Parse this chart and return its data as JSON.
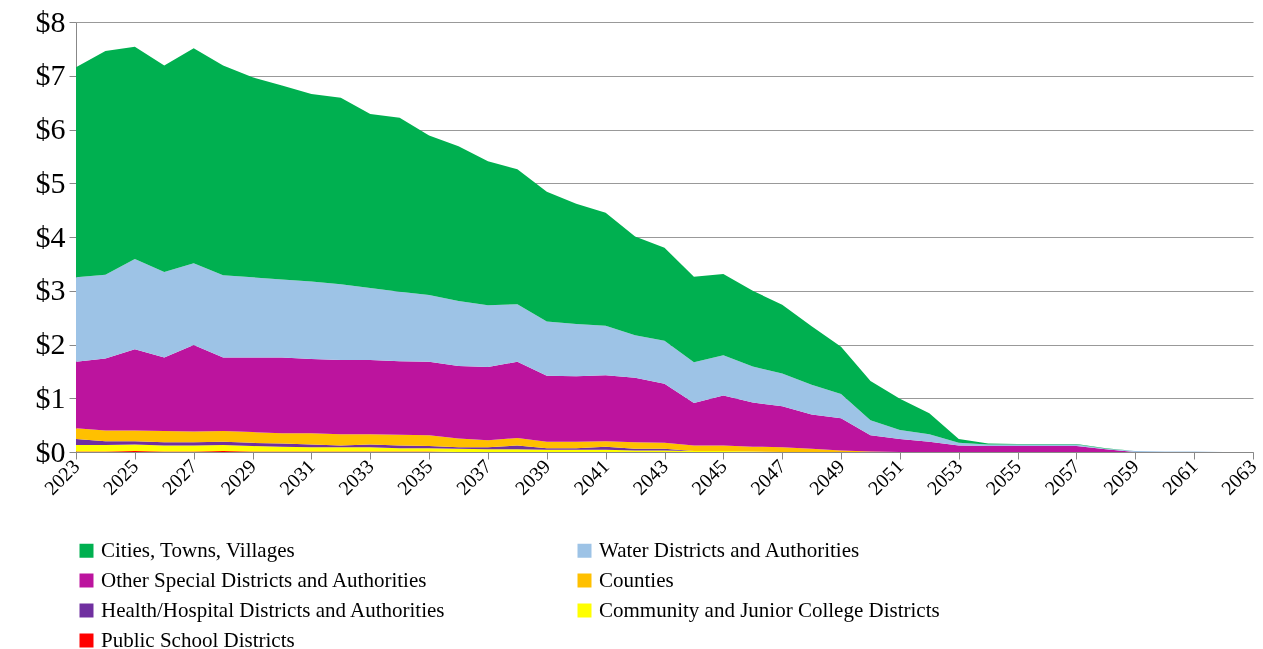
{
  "chart_data": {
    "type": "area",
    "stacked": true,
    "x": [
      2023,
      2024,
      2025,
      2026,
      2027,
      2028,
      2029,
      2030,
      2031,
      2032,
      2033,
      2034,
      2035,
      2036,
      2037,
      2038,
      2039,
      2040,
      2041,
      2042,
      2043,
      2044,
      2045,
      2046,
      2047,
      2048,
      2049,
      2050,
      2051,
      2052,
      2053,
      2054,
      2055,
      2056,
      2057,
      2058,
      2059,
      2060,
      2061,
      2062
    ],
    "series": [
      {
        "name": "Public School Districts",
        "color": "#ff0000",
        "values": [
          0.01,
          0.01,
          0.02,
          0.01,
          0.01,
          0.02,
          0.01,
          0.01,
          0.01,
          0.01,
          0.01,
          0.01,
          0.01,
          0,
          0,
          0,
          0,
          0,
          0,
          0,
          0,
          0,
          0,
          0,
          0,
          0,
          0,
          0,
          0,
          0,
          0,
          0,
          0,
          0,
          0,
          0,
          0,
          0,
          0,
          0
        ]
      },
      {
        "name": "Community and Junior College Districts",
        "color": "#ffff00",
        "values": [
          0.12,
          0.12,
          0.12,
          0.11,
          0.11,
          0.11,
          0.1,
          0.09,
          0.08,
          0.08,
          0.08,
          0.06,
          0.06,
          0.06,
          0.05,
          0.05,
          0.04,
          0.04,
          0.04,
          0.03,
          0.03,
          0.02,
          0.02,
          0.01,
          0,
          0,
          0,
          0,
          0,
          0,
          0,
          0,
          0,
          0,
          0,
          0,
          0,
          0,
          0,
          0
        ]
      },
      {
        "name": "Health/Hospital Districts and Authorities",
        "color": "#7030a0",
        "values": [
          0.11,
          0.07,
          0.06,
          0.06,
          0.06,
          0.06,
          0.06,
          0.06,
          0.05,
          0.03,
          0.05,
          0.05,
          0.04,
          0.03,
          0.04,
          0.07,
          0.03,
          0.03,
          0.06,
          0.03,
          0.03,
          0,
          0,
          0,
          0,
          0,
          0,
          0,
          0,
          0,
          0,
          0,
          0,
          0,
          0,
          0,
          0,
          0,
          0,
          0
        ]
      },
      {
        "name": "Counties",
        "color": "#ffc000",
        "values": [
          0.2,
          0.2,
          0.2,
          0.21,
          0.2,
          0.2,
          0.2,
          0.19,
          0.21,
          0.21,
          0.19,
          0.2,
          0.2,
          0.16,
          0.13,
          0.14,
          0.12,
          0.12,
          0.1,
          0.12,
          0.11,
          0.1,
          0.1,
          0.09,
          0.09,
          0.06,
          0.03,
          0.01,
          0,
          0,
          0,
          0,
          0,
          0,
          0,
          0,
          0,
          0,
          0,
          0
        ]
      },
      {
        "name": "Other Special Districts and Authorities",
        "color": "#bc149e",
        "values": [
          1.24,
          1.34,
          1.51,
          1.37,
          1.61,
          1.37,
          1.39,
          1.41,
          1.38,
          1.38,
          1.38,
          1.37,
          1.37,
          1.35,
          1.36,
          1.42,
          1.23,
          1.22,
          1.23,
          1.2,
          1.1,
          0.79,
          0.93,
          0.82,
          0.76,
          0.64,
          0.6,
          0.3,
          0.24,
          0.19,
          0.12,
          0.11,
          0.11,
          0.11,
          0.11,
          0.05,
          0,
          0,
          0,
          0
        ]
      },
      {
        "name": "Water Districts and Authorities",
        "color": "#9dc3e6",
        "values": [
          1.57,
          1.56,
          1.68,
          1.59,
          1.52,
          1.53,
          1.49,
          1.45,
          1.44,
          1.41,
          1.34,
          1.29,
          1.24,
          1.21,
          1.15,
          1.07,
          1.01,
          0.97,
          0.92,
          0.79,
          0.8,
          0.76,
          0.75,
          0.67,
          0.61,
          0.55,
          0.45,
          0.28,
          0.17,
          0.14,
          0.05,
          0.03,
          0.03,
          0.03,
          0.03,
          0.01,
          0.02,
          0.01,
          0.01,
          0
        ]
      },
      {
        "name": "Cities, Towns, Villages",
        "color": "#00b050",
        "values": [
          3.91,
          4.16,
          3.95,
          3.84,
          4.0,
          3.9,
          3.72,
          3.61,
          3.49,
          3.47,
          3.24,
          3.24,
          2.97,
          2.88,
          2.68,
          2.51,
          2.41,
          2.24,
          2.1,
          1.84,
          1.73,
          1.59,
          1.51,
          1.41,
          1.28,
          1.09,
          0.88,
          0.73,
          0.58,
          0.39,
          0.07,
          0.02,
          0.01,
          0.01,
          0.01,
          0.01,
          0,
          0,
          0,
          0
        ]
      }
    ],
    "xlim": [
      2023,
      2063
    ],
    "xticks": [
      2023,
      2025,
      2027,
      2029,
      2031,
      2033,
      2035,
      2037,
      2039,
      2041,
      2043,
      2045,
      2047,
      2049,
      2051,
      2053,
      2055,
      2057,
      2059,
      2061,
      2063
    ],
    "ylim": [
      0,
      8
    ],
    "yticks": [
      {
        "value": 0,
        "label": "$0"
      },
      {
        "value": 1,
        "label": "$1"
      },
      {
        "value": 2,
        "label": "$2"
      },
      {
        "value": 3,
        "label": "$3"
      },
      {
        "value": 4,
        "label": "$4"
      },
      {
        "value": 5,
        "label": "$5"
      },
      {
        "value": 6,
        "label": "$6"
      },
      {
        "value": 7,
        "label": "$7"
      },
      {
        "value": 8,
        "label": "$8"
      }
    ],
    "grid": "y",
    "legend": "bottom"
  }
}
